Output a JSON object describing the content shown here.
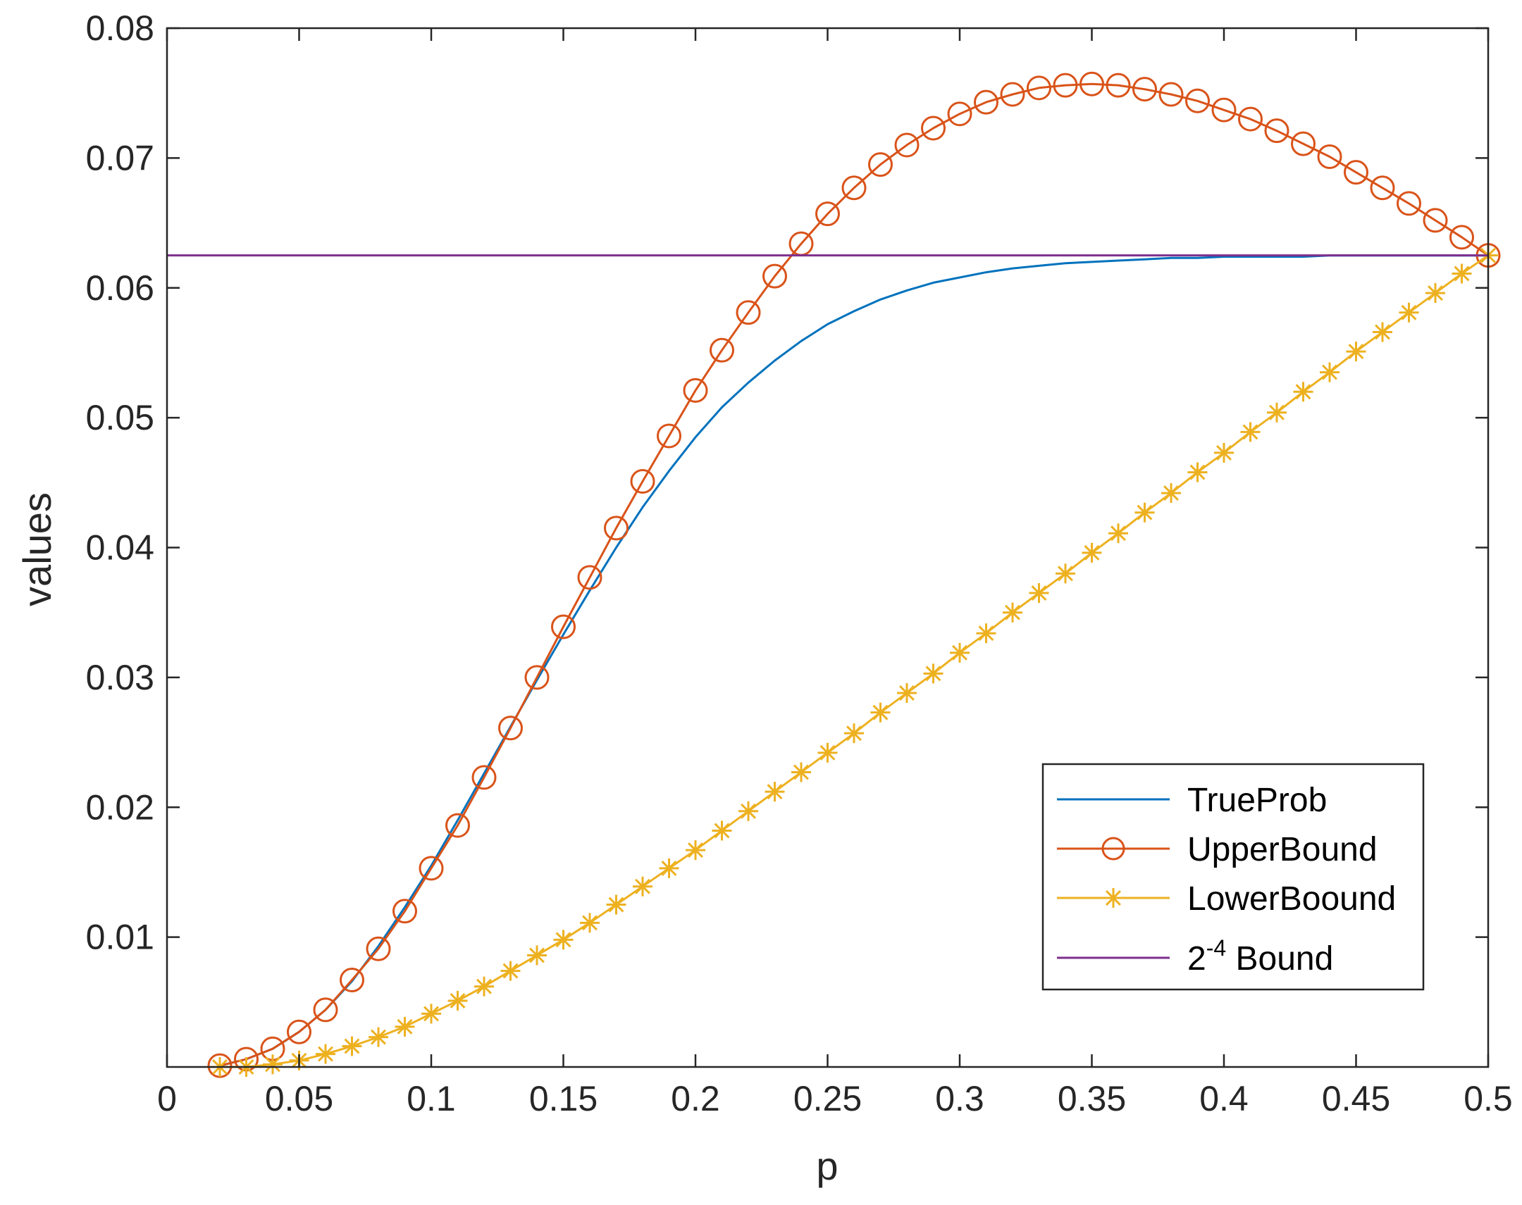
{
  "chart_data": {
    "type": "line",
    "title": "",
    "xlabel": "p",
    "ylabel": "values",
    "xlim": [
      0,
      0.5
    ],
    "ylim": [
      0,
      0.08
    ],
    "grid": false,
    "legend_position": "bottom-right",
    "xticks": [
      0,
      0.05,
      0.1,
      0.15,
      0.2,
      0.25,
      0.3,
      0.35,
      0.4,
      0.45,
      0.5
    ],
    "xtick_labels": [
      "0",
      "0.05",
      "0.1",
      "0.15",
      "0.2",
      "0.25",
      "0.3",
      "0.35",
      "0.4",
      "0.45",
      "0.5"
    ],
    "yticks": [
      0.01,
      0.02,
      0.03,
      0.04,
      0.05,
      0.06,
      0.07,
      0.08
    ],
    "ytick_labels": [
      "0.01",
      "0.02",
      "0.03",
      "0.04",
      "0.05",
      "0.06",
      "0.07",
      "0.08"
    ],
    "x": [
      0.02,
      0.03,
      0.04,
      0.05,
      0.06,
      0.07,
      0.08,
      0.09,
      0.1,
      0.11,
      0.12,
      0.13,
      0.14,
      0.15,
      0.16,
      0.17,
      0.18,
      0.19,
      0.2,
      0.21,
      0.22,
      0.23,
      0.24,
      0.25,
      0.26,
      0.27,
      0.28,
      0.29,
      0.3,
      0.31,
      0.32,
      0.33,
      0.34,
      0.35,
      0.36,
      0.37,
      0.38,
      0.39,
      0.4,
      0.41,
      0.42,
      0.43,
      0.44,
      0.45,
      0.46,
      0.47,
      0.48,
      0.49,
      0.5
    ],
    "series": [
      {
        "name": "TrueProb",
        "color": "#0072BD",
        "marker": "none",
        "values": [
          0.0001,
          0.0006,
          0.0014,
          0.0027,
          0.0044,
          0.0066,
          0.0093,
          0.0123,
          0.0155,
          0.019,
          0.0226,
          0.0262,
          0.0298,
          0.0333,
          0.0367,
          0.04,
          0.0431,
          0.0459,
          0.0485,
          0.0508,
          0.0527,
          0.0544,
          0.0559,
          0.0572,
          0.0582,
          0.0591,
          0.0598,
          0.0604,
          0.0608,
          0.0612,
          0.0615,
          0.0617,
          0.0619,
          0.062,
          0.0621,
          0.0622,
          0.0623,
          0.0623,
          0.0624,
          0.0624,
          0.0624,
          0.0624,
          0.0625,
          0.0625,
          0.0625,
          0.0625,
          0.0625,
          0.0625,
          0.0625
        ]
      },
      {
        "name": "UpperBound",
        "color": "#D95319",
        "marker": "circle",
        "values": [
          0.0001,
          0.0006,
          0.0014,
          0.0027,
          0.0044,
          0.0067,
          0.0091,
          0.012,
          0.0153,
          0.0186,
          0.0223,
          0.0261,
          0.03,
          0.0339,
          0.0377,
          0.0415,
          0.0451,
          0.0486,
          0.0521,
          0.0552,
          0.0581,
          0.0609,
          0.0634,
          0.0657,
          0.0677,
          0.0695,
          0.071,
          0.0723,
          0.0734,
          0.0743,
          0.0749,
          0.0754,
          0.0756,
          0.0757,
          0.0756,
          0.0753,
          0.0749,
          0.0744,
          0.0737,
          0.073,
          0.0721,
          0.0711,
          0.0701,
          0.0689,
          0.0677,
          0.0665,
          0.0652,
          0.0639,
          0.0625
        ]
      },
      {
        "name": "LowerBoound",
        "color": "#EDB120",
        "marker": "asterisk",
        "values": [
          0.0,
          0.0,
          0.0002,
          0.0005,
          0.001,
          0.0016,
          0.0023,
          0.0031,
          0.0041,
          0.0051,
          0.0062,
          0.0074,
          0.0086,
          0.0098,
          0.0111,
          0.0125,
          0.0139,
          0.0153,
          0.0167,
          0.0182,
          0.0197,
          0.0212,
          0.0227,
          0.0242,
          0.0257,
          0.0273,
          0.0288,
          0.0303,
          0.0319,
          0.0334,
          0.035,
          0.0365,
          0.038,
          0.0396,
          0.0411,
          0.0427,
          0.0442,
          0.0458,
          0.0473,
          0.0489,
          0.0504,
          0.052,
          0.0535,
          0.0551,
          0.0566,
          0.0581,
          0.0596,
          0.0611,
          0.0625
        ]
      },
      {
        "name": "2^-4 Bound",
        "legend_base": "2",
        "legend_exponent": "-4",
        "legend_suffix": " Bound",
        "color": "#7E2F8E",
        "marker": "none",
        "constant": 0.0625
      }
    ]
  }
}
